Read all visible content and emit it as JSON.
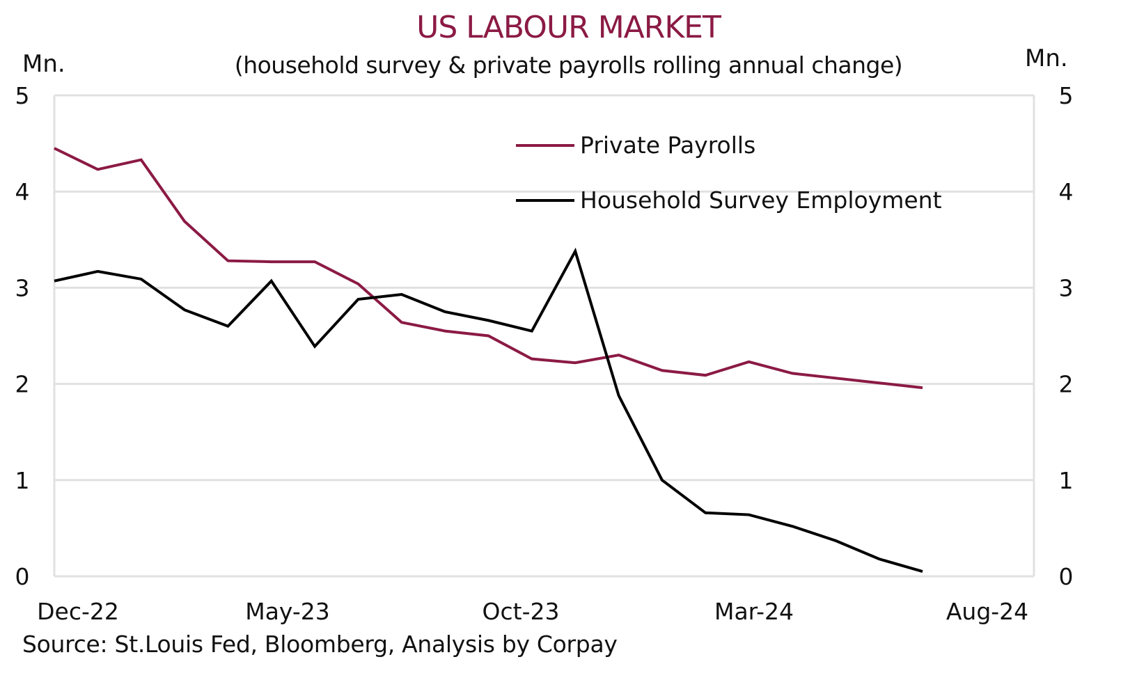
{
  "chart_data": {
    "type": "line",
    "title": "US LABOUR MARKET",
    "subtitle": "(household survey & private payrolls rolling annual change)",
    "ylabel_left": "Mn.",
    "ylabel_right": "Mn.",
    "xlabel": "",
    "source": "Source: St.Louis Fed, Bloomberg, Analysis by Corpay",
    "ylim": [
      0,
      5
    ],
    "yticks": [
      "0",
      "1",
      "2",
      "3",
      "4",
      "5"
    ],
    "x": [
      "Dec-22",
      "Jan-23",
      "Feb-23",
      "Mar-23",
      "Apr-23",
      "May-23",
      "Jun-23",
      "Jul-23",
      "Aug-23",
      "Sep-23",
      "Oct-23",
      "Nov-23",
      "Dec-23",
      "Jan-24",
      "Feb-24",
      "Mar-24",
      "Apr-24",
      "May-24",
      "Jun-24",
      "Jul-24",
      "Aug-24"
    ],
    "xtick_labels": [
      {
        "index": 0,
        "label": "Dec-22"
      },
      {
        "index": 5,
        "label": "May-23"
      },
      {
        "index": 10,
        "label": "Oct-23"
      },
      {
        "index": 15,
        "label": "Mar-24"
      },
      {
        "index": 20,
        "label": "Aug-24"
      }
    ],
    "grid": true,
    "legend_position": "top-right",
    "title_color": "#8b1a44",
    "series": [
      {
        "name": "Private Payrolls",
        "color": "#8b1a44",
        "values": [
          4.45,
          4.23,
          4.33,
          3.69,
          3.28,
          3.27,
          3.27,
          3.04,
          2.64,
          2.55,
          2.5,
          2.26,
          2.22,
          2.3,
          2.14,
          2.09,
          2.23,
          2.11,
          2.06,
          2.01,
          1.96
        ]
      },
      {
        "name": "Household Survey Employment",
        "color": "#000000",
        "values": [
          3.07,
          3.17,
          3.09,
          2.77,
          2.6,
          3.07,
          2.39,
          2.88,
          2.93,
          2.75,
          2.66,
          2.55,
          3.38,
          1.88,
          1.0,
          0.66,
          0.64,
          0.52,
          0.37,
          0.18,
          0.05
        ]
      }
    ]
  }
}
